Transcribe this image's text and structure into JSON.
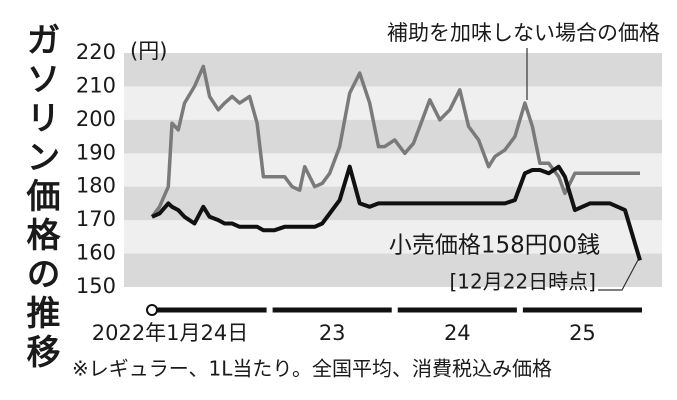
{
  "chart_data": {
    "type": "line",
    "title": "ガソリン価格の推移",
    "y_unit": "(円)",
    "footnote": "※レギュラー、1L当たり。全国平均、消費税込み価格",
    "annotations": [
      "補助を加味しない場合の価格",
      "小売価格158円00銭",
      "[12月22日時点]"
    ],
    "x": [
      2022.06,
      2022.12,
      2022.19,
      2022.22,
      2022.27,
      2022.32,
      2022.4,
      2022.47,
      2022.52,
      2022.59,
      2022.64,
      2022.7,
      2022.76,
      2022.84,
      2022.9,
      2022.95,
      2023.04,
      2023.12,
      2023.18,
      2023.24,
      2023.28,
      2023.36,
      2023.42,
      2023.48,
      2023.56,
      2023.64,
      2023.72,
      2023.8,
      2023.87,
      2023.92,
      2024.0,
      2024.08,
      2024.15,
      2024.2,
      2024.28,
      2024.36,
      2024.44,
      2024.52,
      2024.59,
      2024.67,
      2024.75,
      2024.8,
      2024.88,
      2024.96,
      2025.04,
      2025.1,
      2025.16,
      2025.23,
      2025.31,
      2025.36,
      2025.44,
      2025.56,
      2025.72,
      2025.84,
      2025.96
    ],
    "series": [
      {
        "name": "補助を加味しない場合の価格",
        "color": "#7a7a7a",
        "values": [
          171,
          174,
          180,
          199,
          197,
          205,
          210,
          216,
          207,
          203,
          205,
          207,
          205,
          207,
          199,
          183,
          183,
          183,
          180,
          179,
          186,
          180,
          181,
          184,
          192,
          208,
          214,
          205,
          192,
          192,
          194,
          190,
          193,
          198,
          206,
          200,
          203,
          209,
          198,
          194,
          186,
          189,
          191,
          195,
          205,
          198,
          187,
          187,
          183,
          178,
          184,
          184,
          184,
          184,
          184
        ]
      },
      {
        "name": "小売価格",
        "color": "#111111",
        "values": [
          171,
          172,
          175,
          174,
          173,
          171,
          169,
          174,
          171,
          170,
          169,
          169,
          168,
          168,
          168,
          167,
          167,
          168,
          168,
          168,
          168,
          168,
          169,
          172,
          176,
          186,
          175,
          174,
          175,
          175,
          175,
          175,
          175,
          175,
          175,
          175,
          175,
          175,
          175,
          175,
          175,
          175,
          175,
          176,
          184,
          185,
          185,
          184,
          186,
          183,
          173,
          175,
          175,
          173,
          158
        ]
      }
    ],
    "xlim": [
      2022.06,
      2025.96
    ],
    "xticks": [
      {
        "value": 2022.06,
        "label": "2022年1月24日"
      },
      {
        "value": 2023.5,
        "label": "23"
      },
      {
        "value": 2024.5,
        "label": "24"
      },
      {
        "value": 2025.5,
        "label": "25"
      }
    ],
    "ylim": [
      150,
      220
    ],
    "yticks": [
      150,
      160,
      170,
      180,
      190,
      200,
      210,
      220
    ],
    "grid": "bands"
  }
}
